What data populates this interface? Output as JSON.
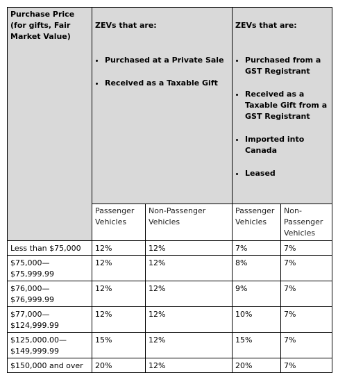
{
  "table": {
    "header": "Purchase Price (for gifts, Fair Market Value)",
    "groups": [
      {
        "title": "ZEVs that are:",
        "items": [
          "Purchased at a Private Sale",
          "Received as a Taxable Gift"
        ]
      },
      {
        "title": "ZEVs that are:",
        "items": [
          "Purchased from a GST Registrant",
          "Received as a Taxable Gift from a GST Registrant",
          "Imported into Canada",
          "Leased"
        ]
      }
    ],
    "subheaders": [
      "Passenger Vehicles",
      "Non-Passenger Vehicles",
      "Passenger Vehicles",
      "Non-Passenger Vehicles"
    ],
    "rows": [
      [
        "Less than $75,000",
        "12%",
        "12%",
        "7%",
        "7%"
      ],
      [
        "$75,000—\n$75,999.99",
        "12%",
        "12%",
        "8%",
        "7%"
      ],
      [
        "$76,000—\n$76,999.99",
        "12%",
        "12%",
        "9%",
        "7%"
      ],
      [
        "$77,000—\n$124,999.99",
        "12%",
        "12%",
        "10%",
        "7%"
      ],
      [
        "$125,000.00—\n$149,999.99",
        "15%",
        "12%",
        "15%",
        "7%"
      ],
      [
        "$150,000 and over",
        "20%",
        "12%",
        "20%",
        "7%"
      ]
    ]
  }
}
